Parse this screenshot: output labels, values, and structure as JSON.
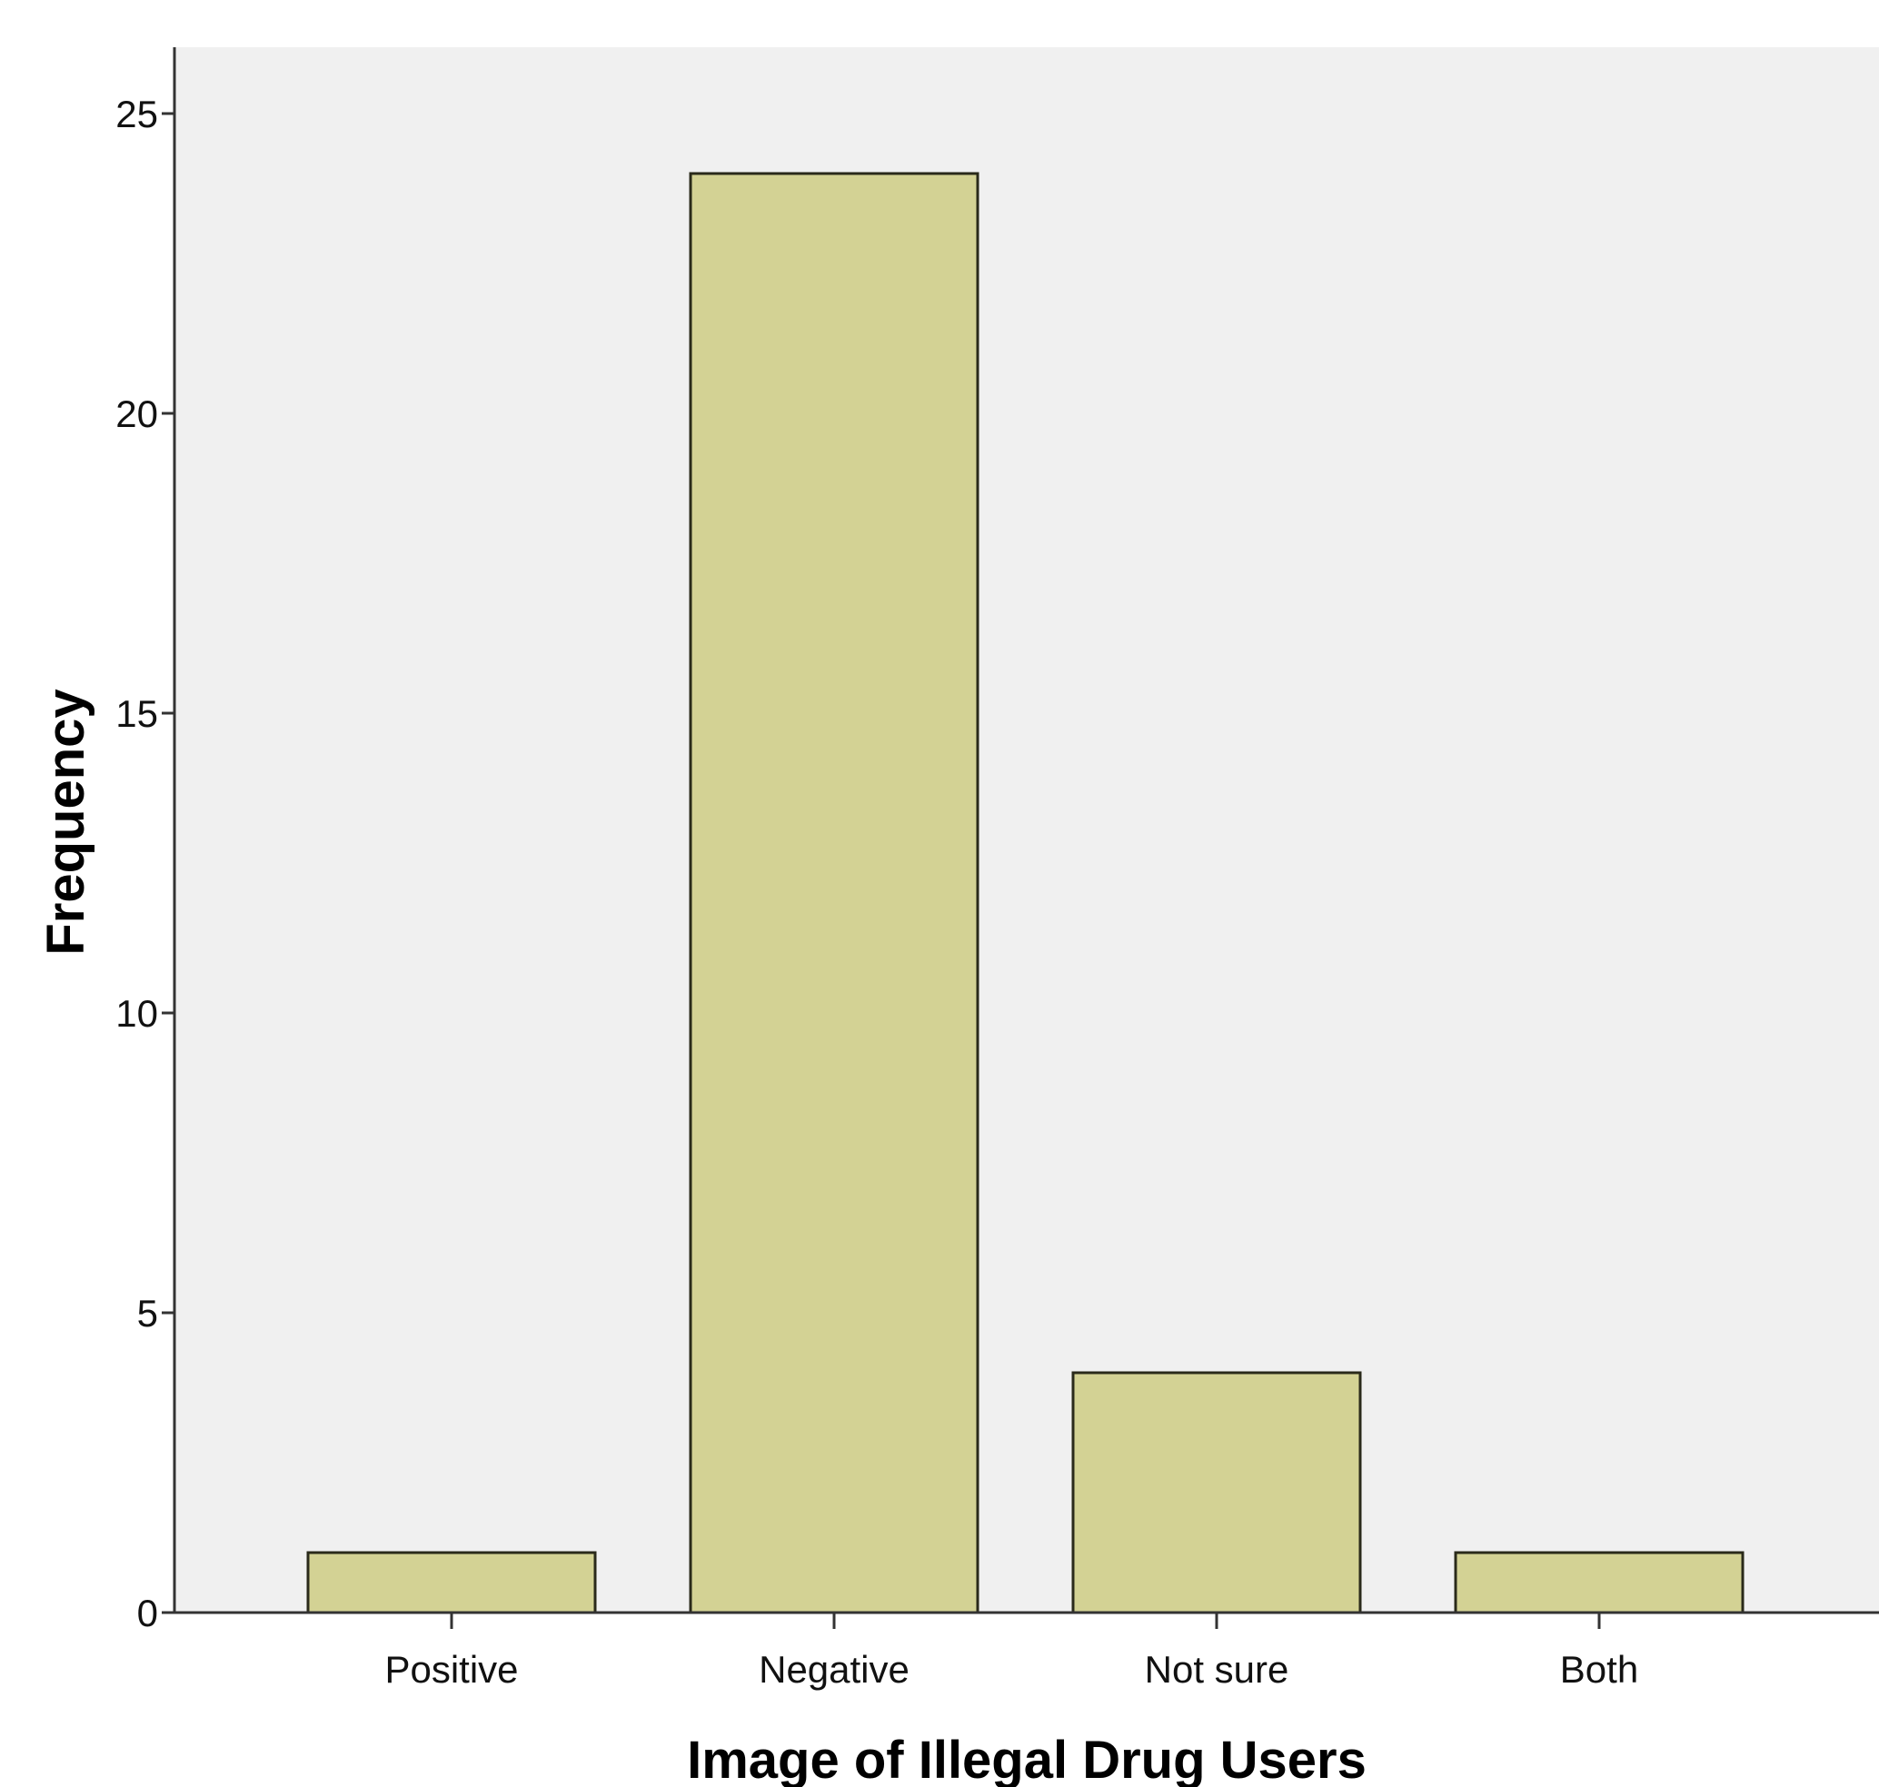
{
  "chart_data": {
    "type": "bar",
    "title": "",
    "xlabel": "Image of Illegal Drug Users",
    "ylabel": "Frequency",
    "categories": [
      "Positive",
      "Negative",
      "Not sure",
      "Both"
    ],
    "values": [
      1,
      24,
      4,
      1
    ],
    "ylim": [
      0,
      26
    ],
    "yticks": [
      0,
      5,
      10,
      15,
      20,
      25
    ],
    "grid": false,
    "legend": "none"
  },
  "colors": {
    "plot_background": "#f0f0f0",
    "bar_fill": "#d3d294",
    "bar_stroke": "#2a2a1a",
    "axis": "#333333"
  }
}
